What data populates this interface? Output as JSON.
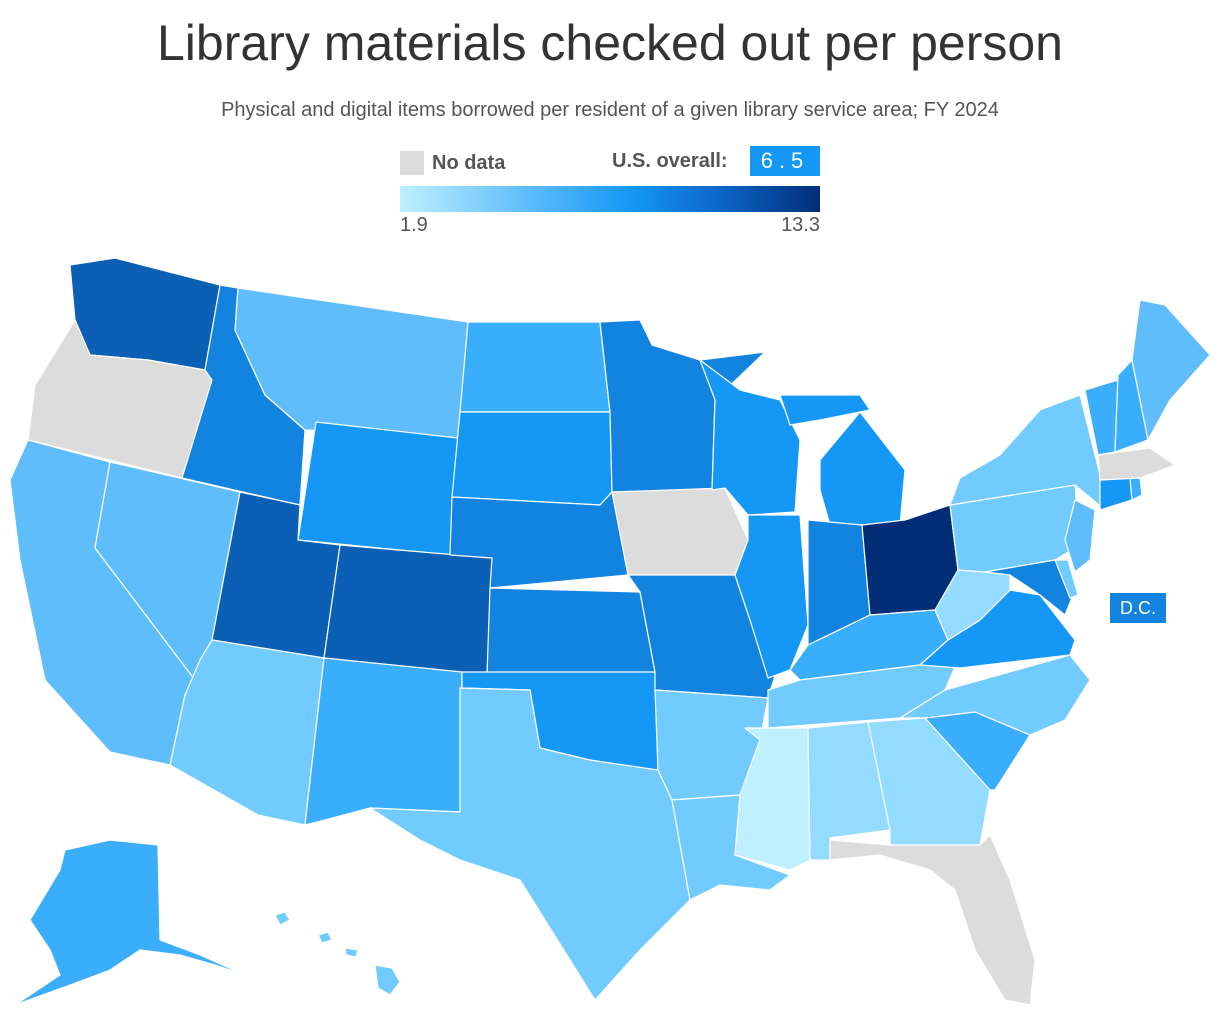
{
  "title": "Library materials checked out per person",
  "subtitle": "Physical and digital items borrowed per resident of a given library service area; FY 2024",
  "legend": {
    "no_data_label": "No data",
    "us_overall_label": "U.S. overall:",
    "us_overall_value": "6.5",
    "scale_min": "1.9",
    "scale_max": "13.3"
  },
  "colors": {
    "no_data": "#dcdcdc",
    "c1": "#bff0ff",
    "c2": "#94dcff",
    "c3": "#72cbfe",
    "c4": "#5fbdfb",
    "c5": "#3aaefb",
    "c6": "#1597f5",
    "c7": "#1383e0",
    "c8": "#0b5fb5",
    "c9": "#022e77"
  },
  "dc_label": "D.C.",
  "states": [
    {
      "id": "WA",
      "level": "c8"
    },
    {
      "id": "OR",
      "level": "no_data"
    },
    {
      "id": "CA",
      "level": "c4"
    },
    {
      "id": "NV",
      "level": "c4"
    },
    {
      "id": "ID",
      "level": "c7"
    },
    {
      "id": "MT",
      "level": "c4"
    },
    {
      "id": "WY",
      "level": "c6"
    },
    {
      "id": "UT",
      "level": "c8"
    },
    {
      "id": "CO",
      "level": "c8"
    },
    {
      "id": "AZ",
      "level": "c3"
    },
    {
      "id": "NM",
      "level": "c5"
    },
    {
      "id": "ND",
      "level": "c5"
    },
    {
      "id": "SD",
      "level": "c6"
    },
    {
      "id": "NE",
      "level": "c7"
    },
    {
      "id": "KS",
      "level": "c7"
    },
    {
      "id": "OK",
      "level": "c6"
    },
    {
      "id": "TX",
      "level": "c3"
    },
    {
      "id": "MN",
      "level": "c7"
    },
    {
      "id": "IA",
      "level": "no_data"
    },
    {
      "id": "MO",
      "level": "c7"
    },
    {
      "id": "AR",
      "level": "c3"
    },
    {
      "id": "LA",
      "level": "c3"
    },
    {
      "id": "WI",
      "level": "c6"
    },
    {
      "id": "IL",
      "level": "c6"
    },
    {
      "id": "MI",
      "level": "c6"
    },
    {
      "id": "IN",
      "level": "c7"
    },
    {
      "id": "OH",
      "level": "c9"
    },
    {
      "id": "KY",
      "level": "c5"
    },
    {
      "id": "TN",
      "level": "c3"
    },
    {
      "id": "MS",
      "level": "c1"
    },
    {
      "id": "AL",
      "level": "c2"
    },
    {
      "id": "GA",
      "level": "c2"
    },
    {
      "id": "FL",
      "level": "no_data"
    },
    {
      "id": "SC",
      "level": "c5"
    },
    {
      "id": "NC",
      "level": "c3"
    },
    {
      "id": "VA",
      "level": "c6"
    },
    {
      "id": "WV",
      "level": "c2"
    },
    {
      "id": "PA",
      "level": "c3"
    },
    {
      "id": "NY",
      "level": "c3"
    },
    {
      "id": "MD",
      "level": "c7"
    },
    {
      "id": "DE",
      "level": "c3"
    },
    {
      "id": "NJ",
      "level": "c4"
    },
    {
      "id": "CT",
      "level": "c6"
    },
    {
      "id": "RI",
      "level": "c5"
    },
    {
      "id": "MA",
      "level": "no_data"
    },
    {
      "id": "VT",
      "level": "c5"
    },
    {
      "id": "NH",
      "level": "c5"
    },
    {
      "id": "ME",
      "level": "c4"
    },
    {
      "id": "AK",
      "level": "c5"
    },
    {
      "id": "HI",
      "level": "c3"
    },
    {
      "id": "DC",
      "level": "c7"
    }
  ]
}
